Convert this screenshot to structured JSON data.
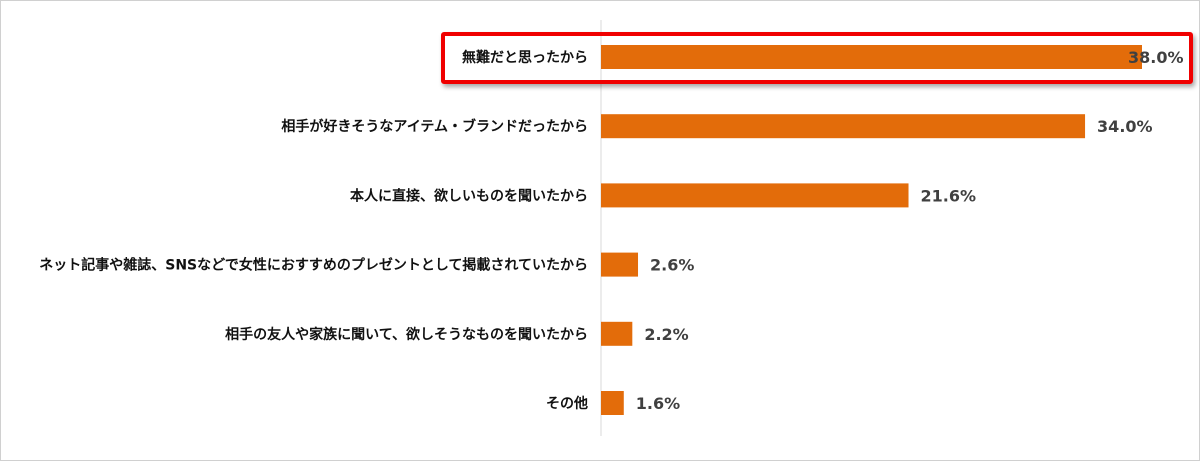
{
  "chart_data": {
    "type": "bar",
    "orientation": "horizontal",
    "categories": [
      "無難だと思ったから",
      "相手が好きそうなアイテム・ブランドだったから",
      "本人に直接、欲しいものを聞いたから",
      "ネット記事や雑誌、SNSなどで女性におすすめのプレゼントとして掲載されていたから",
      "相手の友人や家族に聞いて、欲しそうなものを聞いたから",
      "その他"
    ],
    "values": [
      38.0,
      34.0,
      21.6,
      2.6,
      2.2,
      1.6
    ],
    "value_labels": [
      "38.0%",
      "34.0%",
      "21.6%",
      "2.6%",
      "2.2%",
      "1.6%"
    ],
    "unit": "%",
    "xlim": [
      0,
      40
    ],
    "grid": false,
    "highlighted_category": "無難だと思ったから",
    "bar_color": "#e36c0a",
    "highlight_color": "#f00000"
  }
}
